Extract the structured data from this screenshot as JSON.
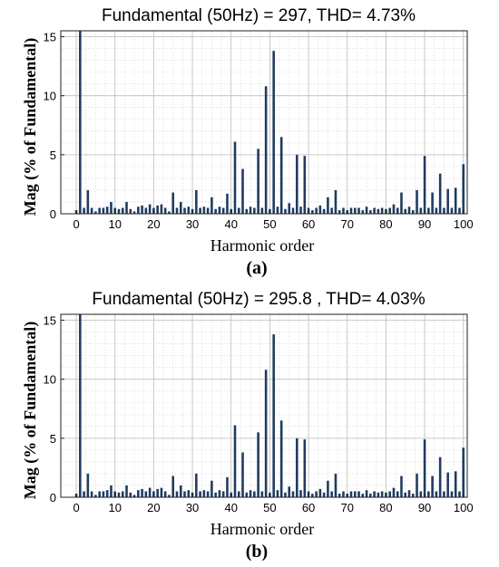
{
  "chart_data": [
    {
      "type": "bar",
      "title": "Fundamental (50Hz) = 297, THD= 4.73%",
      "xlabel": "Harmonic order",
      "ylabel": "Mag (% of Fundamental)",
      "caption": "(a)",
      "xlim": [
        -4,
        101
      ],
      "ylim": [
        0,
        15.5
      ],
      "xticks": [
        0,
        10,
        20,
        30,
        40,
        50,
        60,
        70,
        80,
        90,
        100
      ],
      "yticks": [
        0,
        5,
        10,
        15
      ],
      "grid": true,
      "bar_color": "#1f3a5f",
      "x": [
        0,
        1,
        2,
        3,
        4,
        5,
        6,
        7,
        8,
        9,
        10,
        11,
        12,
        13,
        14,
        15,
        16,
        17,
        18,
        19,
        20,
        21,
        22,
        23,
        24,
        25,
        26,
        27,
        28,
        29,
        30,
        31,
        32,
        33,
        34,
        35,
        36,
        37,
        38,
        39,
        40,
        41,
        42,
        43,
        44,
        45,
        46,
        47,
        48,
        49,
        50,
        51,
        52,
        53,
        54,
        55,
        56,
        57,
        58,
        59,
        60,
        61,
        62,
        63,
        64,
        65,
        66,
        67,
        68,
        69,
        70,
        71,
        72,
        73,
        74,
        75,
        76,
        77,
        78,
        79,
        80,
        81,
        82,
        83,
        84,
        85,
        86,
        87,
        88,
        89,
        90,
        91,
        92,
        93,
        94,
        95,
        96,
        97,
        98,
        99,
        100
      ],
      "values": [
        0.3,
        15.5,
        0.5,
        2.0,
        0.5,
        0.2,
        0.5,
        0.5,
        0.6,
        1.0,
        0.5,
        0.4,
        0.5,
        1.0,
        0.4,
        0.2,
        0.6,
        0.7,
        0.5,
        0.8,
        0.5,
        0.7,
        0.8,
        0.5,
        0.2,
        1.8,
        0.5,
        1.0,
        0.5,
        0.6,
        0.4,
        2.0,
        0.5,
        0.6,
        0.5,
        1.4,
        0.4,
        0.6,
        0.5,
        1.7,
        0.4,
        6.1,
        0.5,
        3.8,
        0.4,
        0.6,
        0.5,
        5.5,
        0.5,
        10.8,
        0.4,
        13.8,
        0.6,
        6.5,
        0.4,
        0.9,
        0.5,
        5.0,
        0.6,
        4.9,
        0.5,
        0.3,
        0.5,
        0.7,
        0.4,
        1.4,
        0.5,
        2.0,
        0.3,
        0.5,
        0.3,
        0.5,
        0.5,
        0.5,
        0.3,
        0.6,
        0.3,
        0.5,
        0.4,
        0.5,
        0.4,
        0.5,
        0.8,
        0.5,
        1.8,
        0.4,
        0.6,
        0.3,
        2.0,
        0.5,
        4.9,
        0.5,
        1.8,
        0.5,
        3.4,
        0.5,
        2.1,
        0.5,
        2.2,
        0.5,
        4.2
      ]
    },
    {
      "type": "bar",
      "title": "Fundamental (50Hz) = 295.8 , THD= 4.03%",
      "xlabel": "Harmonic order",
      "ylabel": "Mag (% of Fundamental)",
      "caption": "(b)",
      "xlim": [
        -4,
        101
      ],
      "ylim": [
        0,
        15.5
      ],
      "xticks": [
        0,
        10,
        20,
        30,
        40,
        50,
        60,
        70,
        80,
        90,
        100
      ],
      "yticks": [
        0,
        5,
        10,
        15
      ],
      "grid": true,
      "bar_color": "#1f3a5f",
      "x": [
        0,
        1,
        2,
        3,
        4,
        5,
        6,
        7,
        8,
        9,
        10,
        11,
        12,
        13,
        14,
        15,
        16,
        17,
        18,
        19,
        20,
        21,
        22,
        23,
        24,
        25,
        26,
        27,
        28,
        29,
        30,
        31,
        32,
        33,
        34,
        35,
        36,
        37,
        38,
        39,
        40,
        41,
        42,
        43,
        44,
        45,
        46,
        47,
        48,
        49,
        50,
        51,
        52,
        53,
        54,
        55,
        56,
        57,
        58,
        59,
        60,
        61,
        62,
        63,
        64,
        65,
        66,
        67,
        68,
        69,
        70,
        71,
        72,
        73,
        74,
        75,
        76,
        77,
        78,
        79,
        80,
        81,
        82,
        83,
        84,
        85,
        86,
        87,
        88,
        89,
        90,
        91,
        92,
        93,
        94,
        95,
        96,
        97,
        98,
        99,
        100
      ],
      "values": [
        0.3,
        15.5,
        0.5,
        2.0,
        0.5,
        0.2,
        0.5,
        0.5,
        0.6,
        1.0,
        0.5,
        0.4,
        0.5,
        1.0,
        0.4,
        0.2,
        0.6,
        0.7,
        0.5,
        0.8,
        0.5,
        0.7,
        0.8,
        0.5,
        0.2,
        1.8,
        0.5,
        1.0,
        0.5,
        0.6,
        0.4,
        2.0,
        0.5,
        0.6,
        0.5,
        1.4,
        0.4,
        0.6,
        0.5,
        1.7,
        0.4,
        6.1,
        0.5,
        3.8,
        0.4,
        0.6,
        0.5,
        5.5,
        0.5,
        10.8,
        0.4,
        13.8,
        0.6,
        6.5,
        0.4,
        0.9,
        0.5,
        5.0,
        0.6,
        4.9,
        0.5,
        0.3,
        0.5,
        0.7,
        0.4,
        1.4,
        0.5,
        2.0,
        0.3,
        0.5,
        0.3,
        0.5,
        0.5,
        0.5,
        0.3,
        0.6,
        0.3,
        0.5,
        0.4,
        0.5,
        0.4,
        0.5,
        0.8,
        0.5,
        1.8,
        0.4,
        0.6,
        0.3,
        2.0,
        0.5,
        4.9,
        0.5,
        1.8,
        0.5,
        3.4,
        0.5,
        2.1,
        0.5,
        2.2,
        0.5,
        4.2
      ]
    }
  ]
}
